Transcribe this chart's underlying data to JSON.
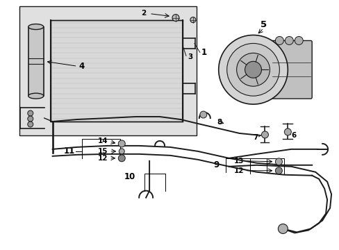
{
  "background_color": "#ffffff",
  "fig_width": 4.89,
  "fig_height": 3.6,
  "dpi": 100,
  "label_fontsize": 7.5,
  "text_color": "#000000",
  "line_color": "#1a1a1a",
  "shade_color": "#e0e0e0",
  "lw_main": 1.4,
  "lw_thin": 0.7
}
